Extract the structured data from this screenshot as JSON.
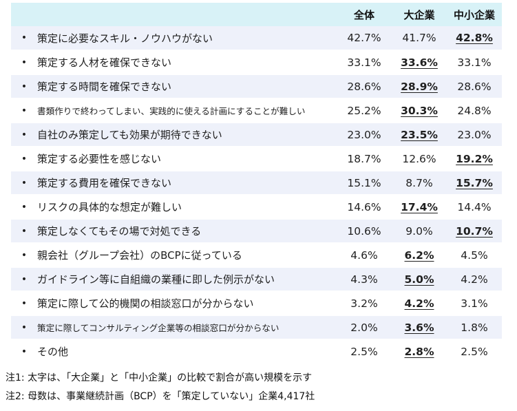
{
  "headers": [
    "全体",
    "大企業",
    "中小企業"
  ],
  "rows": [
    {
      "label": "策定に必要なスキル・ノウハウがない",
      "values": [
        "42.7%",
        "41.7%",
        "42.8%"
      ],
      "bold": 2
    },
    {
      "label": "策定する人材を確保できない",
      "values": [
        "33.1%",
        "33.6%",
        "33.1%"
      ],
      "bold": 1
    },
    {
      "label": "策定する時間を確保できない",
      "values": [
        "28.6%",
        "28.9%",
        "28.6%"
      ],
      "bold": 1
    },
    {
      "label": "書類作りで終わってしまい、実践的に使える計画にすることが難しい",
      "values": [
        "25.2%",
        "30.3%",
        "24.8%"
      ],
      "bold": 1,
      "small": true
    },
    {
      "label": "自社のみ策定しても効果が期待できない",
      "values": [
        "23.0%",
        "23.5%",
        "23.0%"
      ],
      "bold": 1
    },
    {
      "label": "策定する必要性を感じない",
      "values": [
        "18.7%",
        "12.6%",
        "19.2%"
      ],
      "bold": 2
    },
    {
      "label": "策定する費用を確保できない",
      "values": [
        "15.1%",
        "8.7%",
        "15.7%"
      ],
      "bold": 2
    },
    {
      "label": "リスクの具体的な想定が難しい",
      "values": [
        "14.6%",
        "17.4%",
        "14.4%"
      ],
      "bold": 1
    },
    {
      "label": "策定しなくてもその場で対処できる",
      "values": [
        "10.6%",
        "9.0%",
        "10.7%"
      ],
      "bold": 2
    },
    {
      "label": "親会社（グループ会社）のBCPに従っている",
      "values": [
        "4.6%",
        "6.2%",
        "4.5%"
      ],
      "bold": 1
    },
    {
      "label": "ガイドライン等に自組織の業種に即した例示がない",
      "values": [
        "4.3%",
        "5.0%",
        "4.2%"
      ],
      "bold": 1
    },
    {
      "label": "策定に際して公的機関の相談窓口が分からない",
      "values": [
        "3.2%",
        "4.2%",
        "3.1%"
      ],
      "bold": 1
    },
    {
      "label": "策定に際してコンサルティング企業等の相談窓口が分からない",
      "values": [
        "2.0%",
        "3.6%",
        "1.8%"
      ],
      "bold": 1,
      "small": true
    },
    {
      "label": "その他",
      "values": [
        "2.5%",
        "2.8%",
        "2.5%"
      ],
      "bold": 1
    }
  ],
  "bullet": "•",
  "notes": [
    "注1: 太字は、「大企業」と「中小企業」の比較で割合が高い規模を示す",
    "注2: 母数は、事業継続計画（BCP）を「策定していない」企業4,417社"
  ]
}
